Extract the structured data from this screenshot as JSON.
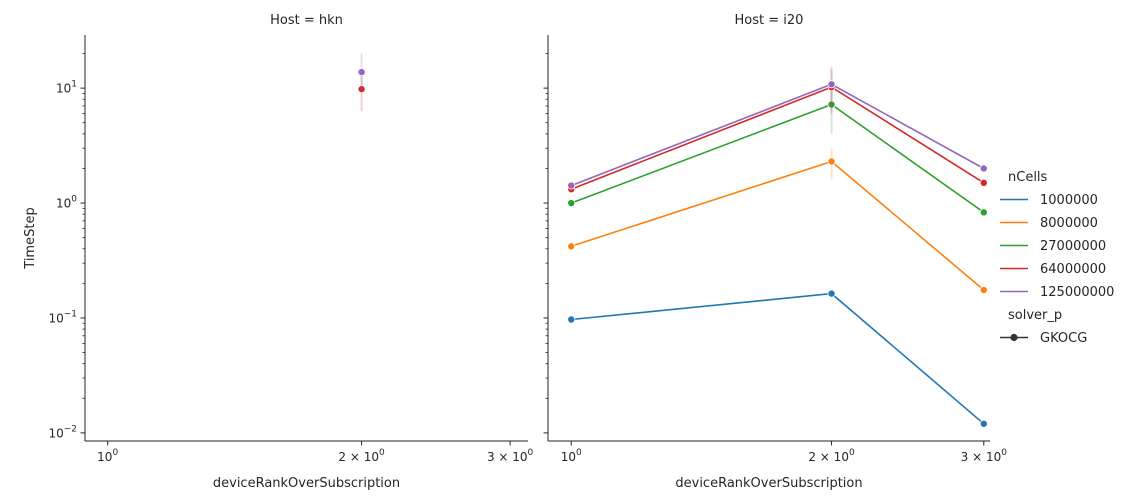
{
  "chart_data": {
    "type": "line",
    "ylabel": "TimeStep",
    "xlabel": "deviceRankOverSubscription",
    "xscale": "log",
    "yscale": "log",
    "ylim": [
      0.0085,
      29
    ],
    "grid": false,
    "legend_placement": "right",
    "x_ticks": [
      {
        "value": 1,
        "base": "10",
        "exp": "0"
      },
      {
        "value": 2,
        "base": "2 × 10",
        "exp": "0"
      },
      {
        "value": 3,
        "base": "3 × 10",
        "exp": "0"
      }
    ],
    "y_ticks": [
      {
        "value": 0.01,
        "base": "10",
        "exp": "−2"
      },
      {
        "value": 0.1,
        "base": "10",
        "exp": "−1"
      },
      {
        "value": 1,
        "base": "10",
        "exp": "0"
      },
      {
        "value": 10,
        "base": "10",
        "exp": "1"
      }
    ],
    "facets": [
      {
        "title": "Host = hkn",
        "xlim": [
          0.94,
          3.15
        ],
        "series": [
          {
            "name": "64000000",
            "color": "#d62728",
            "x": [
              2
            ],
            "y": [
              9.8
            ],
            "ci": [
              [
                6.3,
                13.5
              ]
            ]
          },
          {
            "name": "125000000",
            "color": "#9467bd",
            "x": [
              2
            ],
            "y": [
              13.8
            ],
            "ci": [
              [
                9.5,
                20.0
              ]
            ]
          }
        ]
      },
      {
        "title": "Host = i20",
        "xlim": [
          0.94,
          3.05
        ],
        "series": [
          {
            "name": "1000000",
            "color": "#1f77b4",
            "x": [
              1,
              2,
              3
            ],
            "y": [
              0.097,
              0.163,
              0.012
            ],
            "ci": [
              null,
              [
                0.155,
                0.172
              ],
              null
            ]
          },
          {
            "name": "8000000",
            "color": "#ff7f0e",
            "x": [
              1,
              2,
              3
            ],
            "y": [
              0.42,
              2.3,
              0.175
            ],
            "ci": [
              null,
              [
                1.6,
                3.0
              ],
              null
            ]
          },
          {
            "name": "27000000",
            "color": "#2ca02c",
            "x": [
              1,
              2,
              3
            ],
            "y": [
              1.0,
              7.2,
              0.83
            ],
            "ci": [
              null,
              [
                4.0,
                11.0
              ],
              null
            ]
          },
          {
            "name": "64000000",
            "color": "#d62728",
            "x": [
              1,
              2,
              3
            ],
            "y": [
              1.32,
              10.2,
              1.5
            ],
            "ci": [
              null,
              [
                6.0,
                14.5
              ],
              null
            ]
          },
          {
            "name": "125000000",
            "color": "#9467bd",
            "x": [
              1,
              2,
              3
            ],
            "y": [
              1.42,
              10.8,
              2.0
            ],
            "ci": [
              null,
              [
                6.5,
                15.5
              ],
              null
            ]
          }
        ]
      }
    ],
    "legend": {
      "hue_title": "nCells",
      "hue_entries": [
        {
          "label": "1000000",
          "color": "#1f77b4"
        },
        {
          "label": "8000000",
          "color": "#ff7f0e"
        },
        {
          "label": "27000000",
          "color": "#2ca02c"
        },
        {
          "label": "64000000",
          "color": "#d62728"
        },
        {
          "label": "125000000",
          "color": "#9467bd"
        }
      ],
      "style_title": "solver_p",
      "style_entries": [
        {
          "label": "GKOCG",
          "color": "#333333",
          "marker": "circle"
        }
      ]
    }
  }
}
